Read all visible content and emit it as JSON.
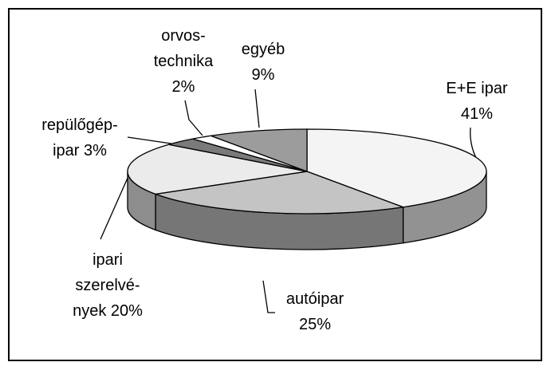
{
  "chart_data": {
    "type": "pie",
    "categories": [
      "E+E ipar",
      "autóipar",
      "ipari\nszerelvé-\nnyek",
      "repülőgép-\nipar",
      "orvos-\ntechnika",
      "egyéb"
    ],
    "values": [
      41,
      25,
      20,
      3,
      2,
      9
    ],
    "value_labels": [
      "41%",
      "25%",
      "20%",
      "3%",
      "2%",
      "9%"
    ],
    "colors": [
      "#f4f4f4",
      "#c4c4c4",
      "#ebebeb",
      "#7a7a7a",
      "#ffffff",
      "#9c9c9c"
    ]
  }
}
